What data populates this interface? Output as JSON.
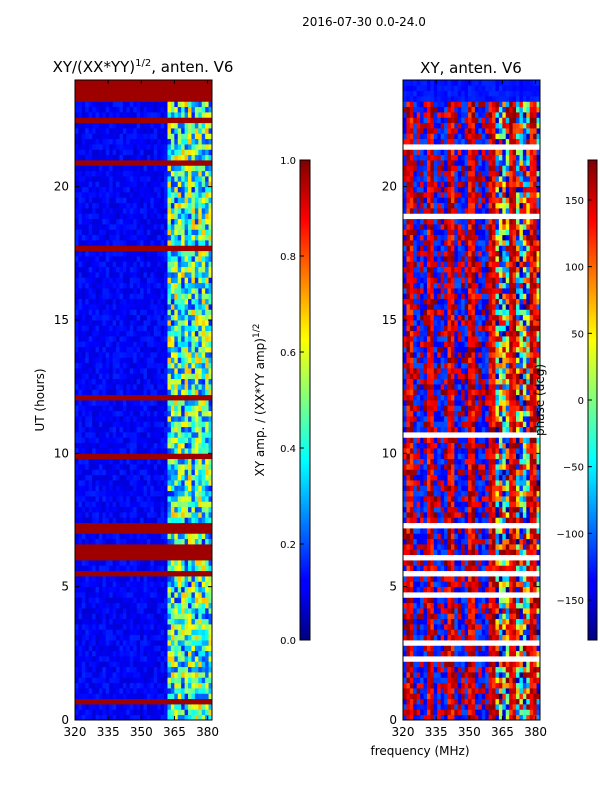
{
  "suptitle": "2016-07-30 0.0-24.0",
  "chart_data": [
    {
      "type": "heatmap",
      "title": "XY/(XX*YY)^{1/2}, anten. V6",
      "title_main": "XY/(XX*YY)",
      "title_exp": "1/2",
      "title_suffix": ", anten. V6",
      "xlabel": "",
      "ylabel": "UT (hours)",
      "xlim": [
        320,
        382
      ],
      "ylim": [
        0,
        24
      ],
      "xticks": [
        320,
        335,
        350,
        365,
        380
      ],
      "yticks": [
        0,
        5,
        10,
        15,
        20
      ],
      "colorbar": {
        "label": "XY amp. / (XX*YY amp)^{1/2}",
        "label_main": "XY amp. / (XX*YY amp)",
        "label_exp": "1/2",
        "vmin": 0.0,
        "vmax": 1.0,
        "ticks": [
          "0.0",
          "0.2",
          "0.4",
          "0.6",
          "0.8",
          "1.0"
        ]
      }
    },
    {
      "type": "heatmap",
      "title": "XY, anten. V6",
      "xlabel": "frequency (MHz)",
      "ylabel": "",
      "xlim": [
        320,
        382
      ],
      "ylim": [
        0,
        24
      ],
      "xticks": [
        320,
        335,
        350,
        365,
        380
      ],
      "yticks": [
        0,
        5,
        10,
        15,
        20
      ],
      "colorbar": {
        "label": "phase (deg)",
        "vmin": -180,
        "vmax": 180,
        "ticks": [
          "−150",
          "−100",
          "−50",
          "0",
          "50",
          "100",
          "150"
        ]
      }
    }
  ]
}
